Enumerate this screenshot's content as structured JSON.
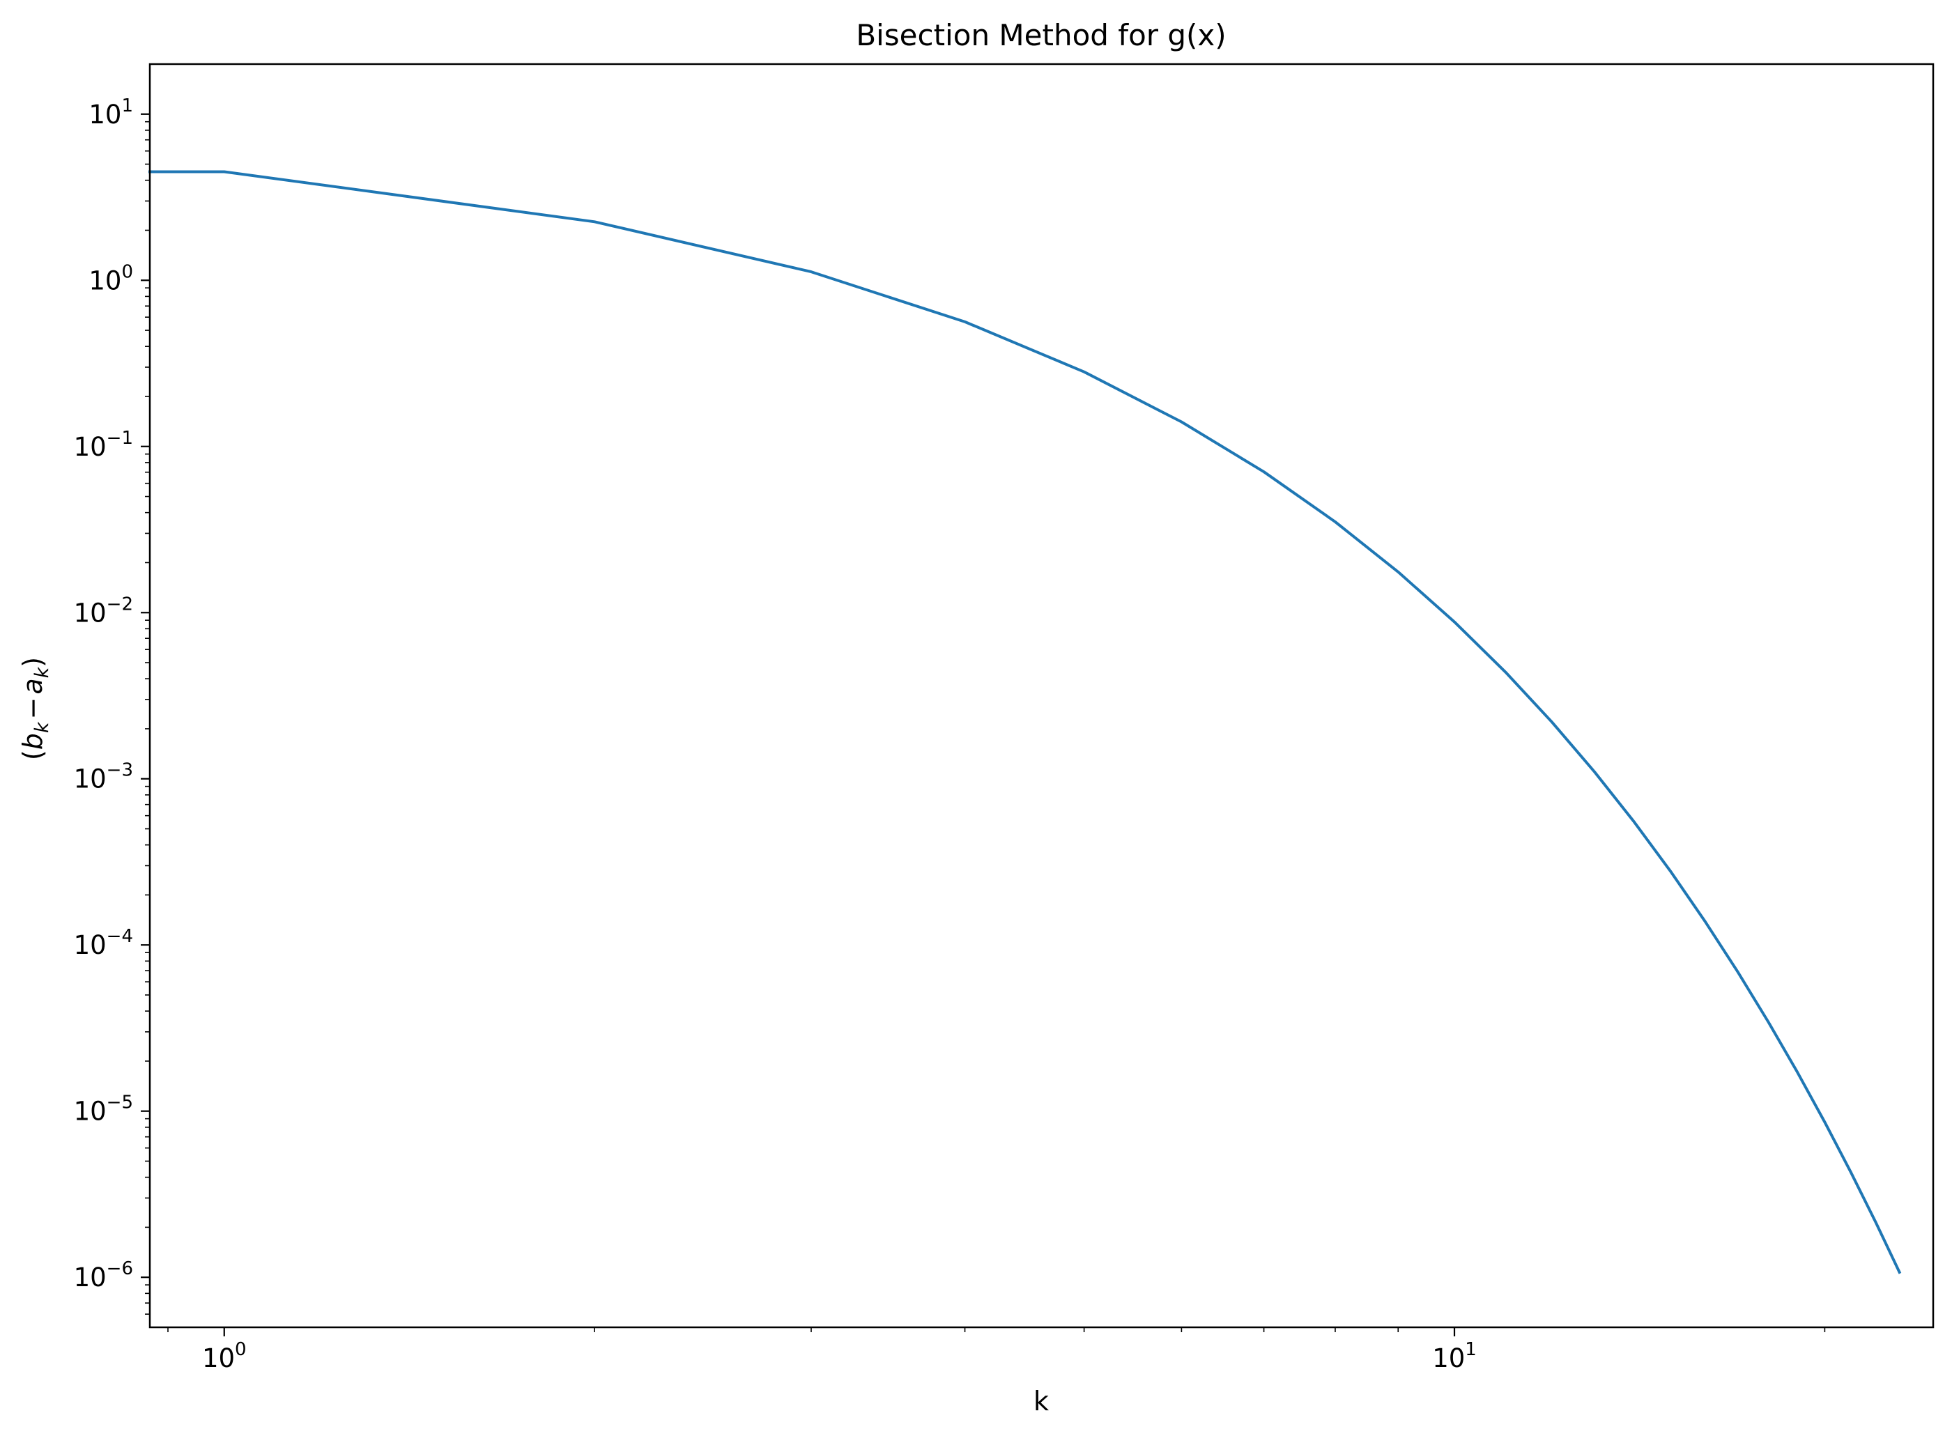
{
  "chart_data": {
    "type": "line",
    "title": "Bisection Method for g(x)",
    "xlabel": "k",
    "ylabel": {
      "open": "(",
      "b": "b",
      "b_sub": "k",
      "minus": "−",
      "a": "a",
      "a_sub": "k",
      "close": ")"
    },
    "xscale": "log",
    "yscale": "log",
    "xlim": [
      0.87,
      24.5
    ],
    "ylim": [
      5e-07,
      20
    ],
    "grid": false,
    "xticks": [
      {
        "value": 1,
        "base": "10",
        "exp": "0"
      },
      {
        "value": 10,
        "base": "10",
        "exp": "1"
      }
    ],
    "yticks": [
      {
        "value": 10,
        "base": "10",
        "exp": "1"
      },
      {
        "value": 1,
        "base": "10",
        "exp": "0"
      },
      {
        "value": 0.1,
        "base": "10",
        "exp": "−1"
      },
      {
        "value": 0.01,
        "base": "10",
        "exp": "−2"
      },
      {
        "value": 0.001,
        "base": "10",
        "exp": "−3"
      },
      {
        "value": 0.0001,
        "base": "10",
        "exp": "−4"
      },
      {
        "value": 1e-05,
        "base": "10",
        "exp": "−5"
      },
      {
        "value": 1e-06,
        "base": "10",
        "exp": "−6"
      }
    ],
    "series": [
      {
        "color": "#1f77b4",
        "x": [
          0,
          1,
          2,
          3,
          4,
          5,
          6,
          7,
          8,
          9,
          10,
          11,
          12,
          13,
          14,
          15,
          16,
          17,
          18,
          19,
          20,
          21,
          22,
          23
        ],
        "y": [
          4.5,
          4.5,
          2.25,
          1.125,
          0.5625,
          0.28125,
          0.140625,
          0.0703125,
          0.03515625,
          0.017578125,
          0.0087890625,
          0.00439453125,
          0.002197265625,
          0.0010986328125,
          0.00054931640625,
          0.000274658203125,
          0.0001373291015625,
          6.866455078125e-05,
          3.4332275390625e-05,
          1.71661376953125e-05,
          8.58306884765625e-06,
          4.291534423828125e-06,
          2.1457672119140625e-06,
          1.0728836059570312e-06
        ]
      }
    ]
  }
}
